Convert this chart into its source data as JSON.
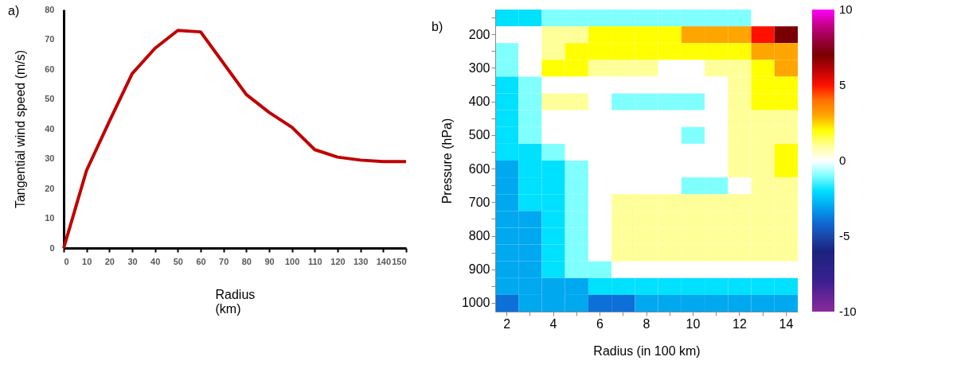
{
  "chart_data": [
    {
      "type": "line",
      "annotations": [
        "a)"
      ],
      "xlabel": "Radius\n(km)",
      "ylabel": "Tangential wind speed (m/s)",
      "x": [
        0,
        10,
        20,
        30,
        40,
        50,
        60,
        70,
        80,
        90,
        100,
        110,
        120,
        130,
        140,
        150
      ],
      "series": [
        {
          "color": "#c00000",
          "values": [
            0,
            26,
            42.5,
            58.5,
            67,
            73,
            72.5,
            62,
            51.5,
            45.5,
            40.5,
            33,
            30.5,
            29.5,
            29,
            29
          ]
        }
      ],
      "xlim": [
        0,
        150
      ],
      "xticks": [
        0,
        10,
        20,
        30,
        40,
        50,
        60,
        70,
        80,
        90,
        100,
        110,
        120,
        130,
        140,
        150
      ],
      "ylim": [
        0,
        80
      ],
      "yticks": [
        0,
        10,
        20,
        30,
        40,
        50,
        60,
        70,
        80
      ],
      "marker": "none",
      "line_style": "solid"
    },
    {
      "type": "heatmap",
      "annotations": [
        "b)"
      ],
      "xlabel": "Radius (in 100 km)",
      "ylabel": "Pressure (hPa)",
      "categories": [
        "2",
        null,
        "4",
        null,
        "6",
        null,
        "8",
        null,
        "10",
        null,
        "12",
        null,
        "14"
      ],
      "y_categories": [
        null,
        "200",
        null,
        "300",
        null,
        "400",
        null,
        "500",
        null,
        "600",
        null,
        "700",
        null,
        "800",
        null,
        "900",
        null,
        "1000"
      ],
      "cells": [
        [
          -2,
          -2,
          -1,
          -1,
          -1,
          -1,
          -1,
          -1,
          -1,
          -1,
          -1,
          0,
          0
        ],
        [
          0,
          0,
          1,
          1,
          2,
          2,
          2,
          2,
          3,
          3,
          3,
          5,
          7
        ],
        [
          -1,
          0,
          1,
          2,
          2,
          2,
          2,
          2,
          2,
          2,
          2,
          3,
          3
        ],
        [
          -1,
          0,
          2,
          2,
          1,
          1,
          1,
          0,
          0,
          1,
          1,
          2,
          3
        ],
        [
          -2,
          -1,
          0,
          0,
          0,
          0,
          0,
          0,
          0,
          0,
          1,
          2,
          2
        ],
        [
          -2,
          -1,
          1,
          1,
          0,
          -1,
          -1,
          -1,
          -1,
          0,
          1,
          2,
          2
        ],
        [
          -2,
          -1,
          0,
          0,
          0,
          0,
          0,
          0,
          0,
          0,
          1,
          1,
          1
        ],
        [
          -2,
          -1,
          0,
          0,
          0,
          0,
          0,
          0,
          -1,
          0,
          1,
          1,
          1
        ],
        [
          -2,
          -2,
          -1,
          0,
          0,
          0,
          0,
          0,
          0,
          0,
          1,
          1,
          2
        ],
        [
          -3,
          -2,
          -2,
          -1,
          0,
          0,
          0,
          0,
          0,
          0,
          1,
          1,
          2
        ],
        [
          -3,
          -2,
          -2,
          -1,
          0,
          0,
          0,
          0,
          -1,
          -1,
          0,
          1,
          1
        ],
        [
          -3,
          -2,
          -2,
          -1,
          0,
          1,
          1,
          1,
          1,
          1,
          1,
          1,
          1
        ],
        [
          -3,
          -3,
          -2,
          -1,
          0,
          1,
          1,
          1,
          1,
          1,
          1,
          1,
          1
        ],
        [
          -3,
          -3,
          -2,
          -1,
          0,
          1,
          1,
          1,
          1,
          1,
          1,
          1,
          1
        ],
        [
          -3,
          -3,
          -2,
          -1,
          0,
          1,
          1,
          1,
          1,
          1,
          1,
          1,
          1
        ],
        [
          -3,
          -3,
          -2,
          -1,
          -1,
          0,
          0,
          0,
          0,
          0,
          0,
          0,
          0
        ],
        [
          -3,
          -3,
          -3,
          -3,
          -2,
          -2,
          -2,
          -2,
          -2,
          -2,
          -2,
          -2,
          -2
        ],
        [
          -4,
          -3,
          -3,
          -3,
          -4,
          -4,
          -3,
          -3,
          -3,
          -3,
          -3,
          -3,
          -3
        ]
      ],
      "clim": [
        -10,
        10
      ],
      "cticks": [
        -10,
        -5,
        0,
        5,
        10
      ]
    }
  ]
}
